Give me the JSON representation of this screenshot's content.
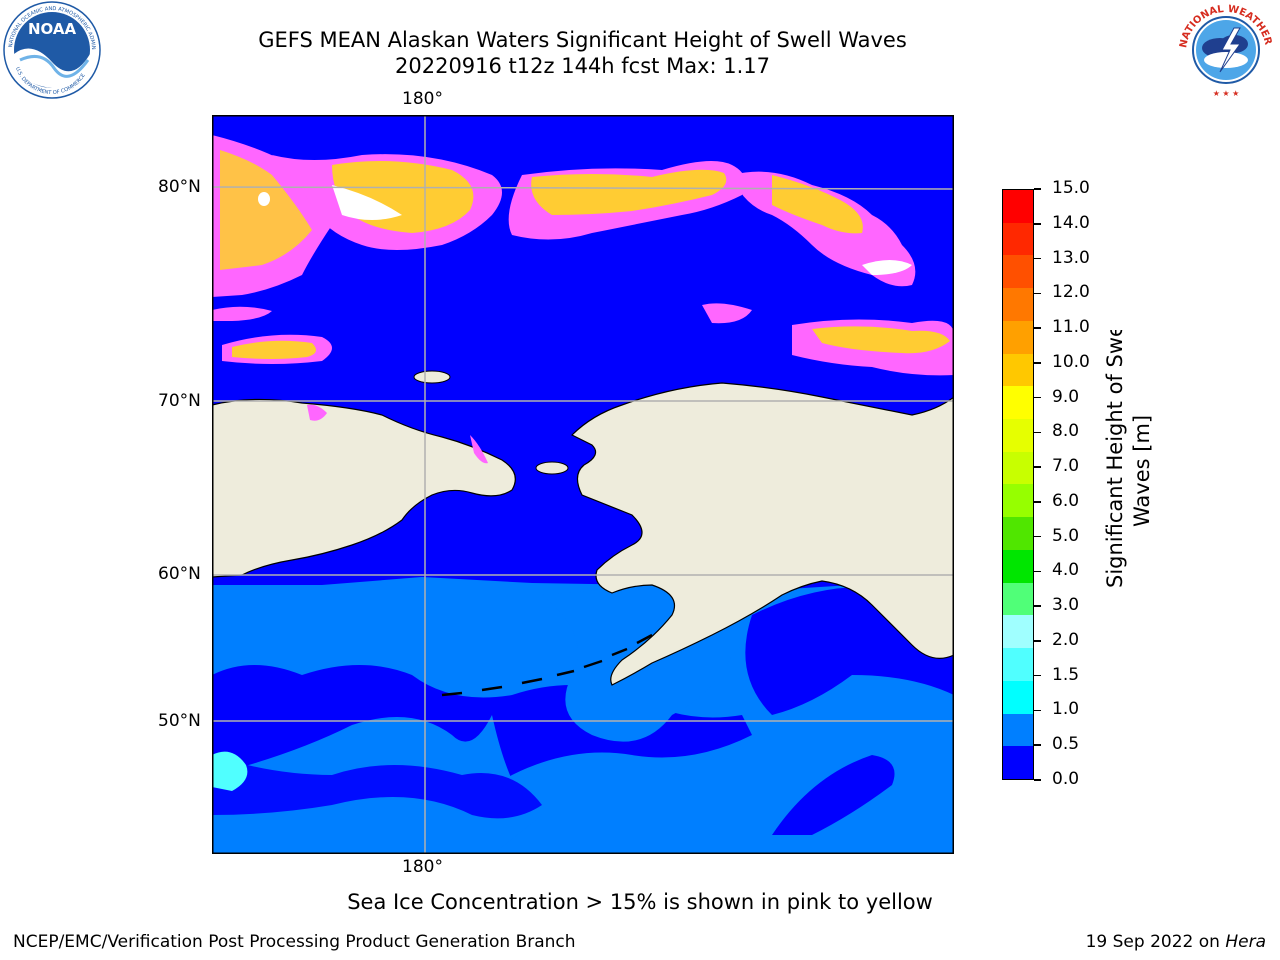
{
  "title": {
    "line1": "GEFS MEAN Alaskan Waters Significant Height of Swell Waves",
    "line2": "20220916 t12z 144h fcst   Max: 1.17"
  },
  "logos": {
    "left": {
      "icon": "noaa-logo",
      "text": "NOAA",
      "ring_text": "NATIONAL OCEANIC AND ATMOSPHERIC ADMINISTRATION · U.S. DEPARTMENT OF COMMERCE",
      "color": "#1f5aa6"
    },
    "right": {
      "icon": "nws-logo",
      "ring_text": "NATIONAL WEATHER SERVICE",
      "color": "#d62d20"
    }
  },
  "map": {
    "top_longitude_label": "180°",
    "bottom_longitude_label": "180°",
    "latitude_labels": [
      "80°N",
      "70°N",
      "60°N",
      "50°N"
    ],
    "colors": {
      "land": "#eeecdc",
      "deep_ocean": "#0000ff",
      "shallow_ocean": "#007fff",
      "ice_pink": "#ff66ff",
      "ice_yellow": "#ffcc33",
      "grid": "#b0b0b0"
    }
  },
  "colorbar": {
    "title": "Significant Height of Swell Waves [m]",
    "title_line1": "Significant Height of Swell",
    "title_line2": "Waves [m]",
    "labels": [
      "15.0",
      "14.0",
      "13.0",
      "12.0",
      "11.0",
      "10.0",
      "9.0",
      "8.0",
      "7.0",
      "6.0",
      "5.0",
      "4.0",
      "3.0",
      "2.0",
      "1.5",
      "1.0",
      "0.5",
      "0.0"
    ],
    "colors_top_to_bottom": [
      "#ff0000",
      "#ff2800",
      "#ff5000",
      "#ff7800",
      "#ffa000",
      "#ffc800",
      "#ffff00",
      "#e6ff00",
      "#c8ff00",
      "#96ff00",
      "#50e600",
      "#00e600",
      "#50ff78",
      "#a0ffff",
      "#50ffff",
      "#00ffff",
      "#007fff",
      "#0000ff"
    ]
  },
  "notes": {
    "ice": "Sea Ice Concentration > 15% is shown in pink to yellow"
  },
  "footer": {
    "left": "NCEP/EMC/Verification Post Processing Product Generation Branch",
    "right_date": "19 Sep 2022 on ",
    "right_machine": "Hera"
  }
}
